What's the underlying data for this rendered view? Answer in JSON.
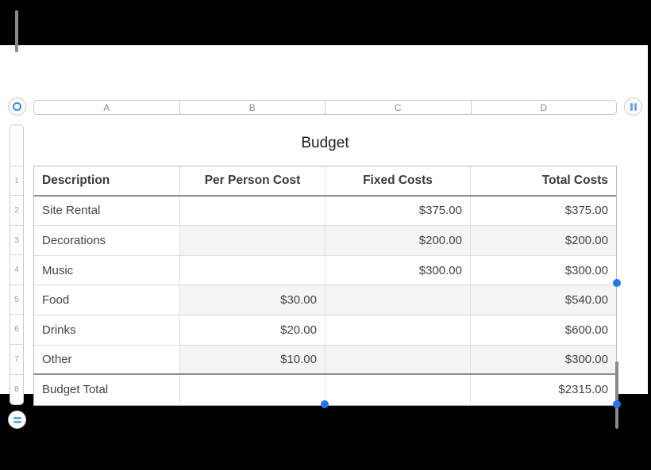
{
  "column_bar": {
    "letters": [
      "A",
      "B",
      "C",
      "D"
    ]
  },
  "row_bar": {
    "numbers": [
      "1",
      "2",
      "3",
      "4",
      "5",
      "6",
      "7",
      "8"
    ]
  },
  "table": {
    "title": "Budget",
    "column_headers": [
      "Description",
      "Per Person Cost",
      "Fixed Costs",
      "Total Costs"
    ],
    "rows": [
      {
        "description": "Site Rental",
        "per_person_cost": "",
        "fixed_costs": "$375.00",
        "total_costs": "$375.00"
      },
      {
        "description": "Decorations",
        "per_person_cost": "",
        "fixed_costs": "$200.00",
        "total_costs": "$200.00"
      },
      {
        "description": "Music",
        "per_person_cost": "",
        "fixed_costs": "$300.00",
        "total_costs": "$300.00"
      },
      {
        "description": "Food",
        "per_person_cost": "$30.00",
        "fixed_costs": "",
        "total_costs": "$540.00"
      },
      {
        "description": "Drinks",
        "per_person_cost": "$20.00",
        "fixed_costs": "",
        "total_costs": "$600.00"
      },
      {
        "description": "Other",
        "per_person_cost": "$10.00",
        "fixed_costs": "",
        "total_costs": "$300.00"
      },
      {
        "description": "Budget Total",
        "per_person_cost": "",
        "fixed_costs": "",
        "total_costs": "$2315.00"
      }
    ]
  },
  "icons": {
    "table_handle": "circle-ring-icon",
    "add_columns_handle": "double-vertical-bar-icon",
    "add_rows_handle": "double-horizontal-bar-icon"
  },
  "colors": {
    "accent_blue": "#1f76f2",
    "icon_blue": "#5aa7f7",
    "row_tint": "#f2f5f4",
    "callout_gray": "#8a8a8a",
    "figure_background": "#000000"
  }
}
